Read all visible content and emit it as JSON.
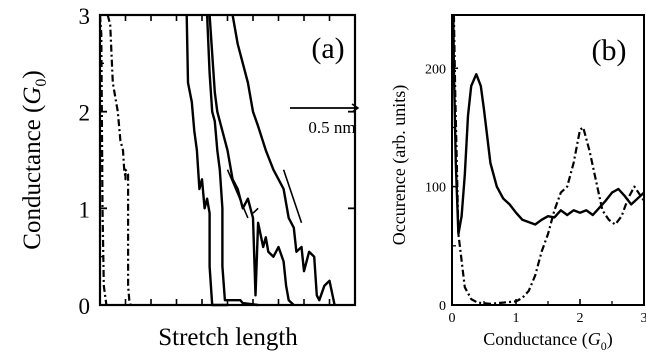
{
  "chart_data": [
    {
      "panel_label": "(a)",
      "type": "line",
      "xlabel": "Stretch length",
      "ylabel": "Conductance (G0)",
      "ylabel_parts": {
        "text": "Conductance (",
        "italic": "G",
        "sub": "0",
        "close": ")"
      },
      "ylim": [
        0,
        3
      ],
      "yticks": [
        0,
        1,
        2,
        3
      ],
      "ytick_labels": [
        "0",
        "1",
        "2",
        "3"
      ],
      "xlim": [
        0,
        1
      ],
      "xtick_count": 10,
      "scale_bar_label": "0.5 nm",
      "grid": false,
      "series": [
        {
          "style": "dash-dot",
          "points": [
            [
              0.03,
              3.0
            ],
            [
              0.04,
              2.9
            ],
            [
              0.045,
              2.6
            ],
            [
              0.05,
              2.3
            ],
            [
              0.07,
              2.0
            ],
            [
              0.08,
              1.7
            ],
            [
              0.09,
              1.6
            ],
            [
              0.095,
              1.4
            ],
            [
              0.098,
              1.35
            ],
            [
              0.1,
              1.3
            ],
            [
              0.1,
              1.4
            ],
            [
              0.11,
              1.35
            ],
            [
              0.11,
              0.2
            ],
            [
              0.115,
              0.05
            ],
            [
              0.12,
              0
            ]
          ]
        },
        {
          "style": "dash-dot",
          "points": [
            [
              0.0,
              3.0
            ],
            [
              0.005,
              2.8
            ],
            [
              0.01,
              1.0
            ],
            [
              0.015,
              0.2
            ],
            [
              0.025,
              0.0
            ]
          ]
        },
        {
          "style": "solid",
          "points": [
            [
              0.34,
              3.0
            ],
            [
              0.345,
              2.3
            ],
            [
              0.36,
              2.1
            ],
            [
              0.37,
              1.8
            ],
            [
              0.38,
              1.6
            ],
            [
              0.39,
              1.2
            ],
            [
              0.4,
              1.3
            ],
            [
              0.41,
              1.0
            ],
            [
              0.42,
              1.1
            ],
            [
              0.43,
              0.95
            ],
            [
              0.43,
              0.4
            ],
            [
              0.44,
              0.0
            ],
            [
              0.5,
              0.0
            ]
          ]
        },
        {
          "style": "solid",
          "points": [
            [
              0.42,
              3.0
            ],
            [
              0.43,
              2.4
            ],
            [
              0.44,
              2.0
            ],
            [
              0.45,
              1.9
            ],
            [
              0.46,
              1.6
            ],
            [
              0.47,
              1.4
            ],
            [
              0.48,
              1.0
            ],
            [
              0.48,
              0.4
            ],
            [
              0.49,
              0.05
            ],
            [
              0.55,
              0.05
            ],
            [
              0.56,
              0.02
            ],
            [
              0.62,
              0.0
            ]
          ]
        },
        {
          "style": "solid",
          "points": [
            [
              0.43,
              3.0
            ],
            [
              0.44,
              2.6
            ],
            [
              0.45,
              2.2
            ],
            [
              0.46,
              2.0
            ],
            [
              0.48,
              1.8
            ],
            [
              0.5,
              1.6
            ],
            [
              0.52,
              1.3
            ],
            [
              0.54,
              1.2
            ],
            [
              0.56,
              1.0
            ],
            [
              0.58,
              1.1
            ],
            [
              0.6,
              0.9
            ],
            [
              0.61,
              0.1
            ],
            [
              0.62,
              0.85
            ],
            [
              0.64,
              0.6
            ],
            [
              0.65,
              0.7
            ],
            [
              0.66,
              0.55
            ],
            [
              0.68,
              0.5
            ],
            [
              0.7,
              0.6
            ],
            [
              0.72,
              0.45
            ],
            [
              0.73,
              0.2
            ],
            [
              0.74,
              0.05
            ],
            [
              0.76,
              0.0
            ]
          ]
        },
        {
          "style": "solid",
          "points": [
            [
              0.52,
              3.0
            ],
            [
              0.54,
              2.7
            ],
            [
              0.56,
              2.5
            ],
            [
              0.58,
              2.3
            ],
            [
              0.6,
              2.0
            ],
            [
              0.62,
              1.85
            ],
            [
              0.65,
              1.6
            ],
            [
              0.68,
              1.4
            ],
            [
              0.7,
              1.3
            ],
            [
              0.72,
              1.2
            ],
            [
              0.74,
              0.9
            ],
            [
              0.76,
              0.8
            ],
            [
              0.77,
              0.55
            ],
            [
              0.79,
              0.6
            ],
            [
              0.8,
              0.35
            ],
            [
              0.82,
              0.55
            ],
            [
              0.84,
              0.5
            ],
            [
              0.85,
              0.1
            ],
            [
              0.86,
              0.05
            ],
            [
              0.88,
              0.2
            ],
            [
              0.9,
              0.25
            ],
            [
              0.92,
              0.0
            ]
          ]
        },
        {
          "style": "solid-thin",
          "points": [
            [
              0.6,
              0.95
            ],
            [
              0.62,
              1.0
            ]
          ]
        },
        {
          "style": "slope-marker",
          "points": [
            [
              0.5,
              1.4
            ],
            [
              0.58,
              0.9
            ]
          ]
        },
        {
          "style": "slope-marker",
          "points": [
            [
              0.72,
              1.4
            ],
            [
              0.79,
              0.85
            ]
          ]
        }
      ]
    },
    {
      "panel_label": "(b)",
      "type": "line",
      "xlabel": "Conductance (G0)",
      "xlabel_parts": {
        "text": "Conductance (",
        "italic": "G",
        "sub": "0",
        "close": ")"
      },
      "ylabel": "Occurence (arb. units)",
      "xlim": [
        0,
        3
      ],
      "ylim": [
        0,
        245
      ],
      "xticks": [
        0,
        1,
        2,
        3
      ],
      "xtick_labels": [
        "0",
        "1",
        "2",
        "3"
      ],
      "yticks": [
        0,
        100,
        200
      ],
      "ytick_labels": [
        "0",
        "100",
        "200"
      ],
      "grid": false,
      "series": [
        {
          "style": "solid",
          "points": [
            [
              0.02,
              245
            ],
            [
              0.03,
              200
            ],
            [
              0.06,
              120
            ],
            [
              0.1,
              60
            ],
            [
              0.15,
              75
            ],
            [
              0.2,
              110
            ],
            [
              0.25,
              160
            ],
            [
              0.3,
              185
            ],
            [
              0.38,
              195
            ],
            [
              0.45,
              185
            ],
            [
              0.5,
              165
            ],
            [
              0.6,
              120
            ],
            [
              0.7,
              100
            ],
            [
              0.8,
              90
            ],
            [
              0.9,
              85
            ],
            [
              1.0,
              78
            ],
            [
              1.1,
              72
            ],
            [
              1.2,
              70
            ],
            [
              1.3,
              68
            ],
            [
              1.4,
              72
            ],
            [
              1.5,
              75
            ],
            [
              1.6,
              74
            ],
            [
              1.7,
              80
            ],
            [
              1.8,
              76
            ],
            [
              1.9,
              80
            ],
            [
              2.0,
              78
            ],
            [
              2.1,
              80
            ],
            [
              2.2,
              76
            ],
            [
              2.3,
              82
            ],
            [
              2.4,
              88
            ],
            [
              2.5,
              95
            ],
            [
              2.6,
              98
            ],
            [
              2.7,
              92
            ],
            [
              2.8,
              85
            ],
            [
              2.9,
              90
            ],
            [
              3.0,
              95
            ]
          ]
        },
        {
          "style": "dash-dot",
          "points": [
            [
              0.03,
              245
            ],
            [
              0.05,
              180
            ],
            [
              0.1,
              60
            ],
            [
              0.2,
              15
            ],
            [
              0.3,
              5
            ],
            [
              0.4,
              2
            ],
            [
              0.6,
              1
            ],
            [
              0.8,
              2
            ],
            [
              1.0,
              3
            ],
            [
              1.1,
              6
            ],
            [
              1.2,
              12
            ],
            [
              1.3,
              25
            ],
            [
              1.4,
              45
            ],
            [
              1.5,
              60
            ],
            [
              1.6,
              80
            ],
            [
              1.7,
              95
            ],
            [
              1.8,
              100
            ],
            [
              1.9,
              120
            ],
            [
              2.0,
              148
            ],
            [
              2.05,
              150
            ],
            [
              2.15,
              130
            ],
            [
              2.25,
              105
            ],
            [
              2.35,
              80
            ],
            [
              2.45,
              72
            ],
            [
              2.55,
              68
            ],
            [
              2.65,
              75
            ],
            [
              2.75,
              90
            ],
            [
              2.85,
              100
            ],
            [
              2.95,
              92
            ],
            [
              3.0,
              88
            ]
          ]
        }
      ]
    }
  ]
}
